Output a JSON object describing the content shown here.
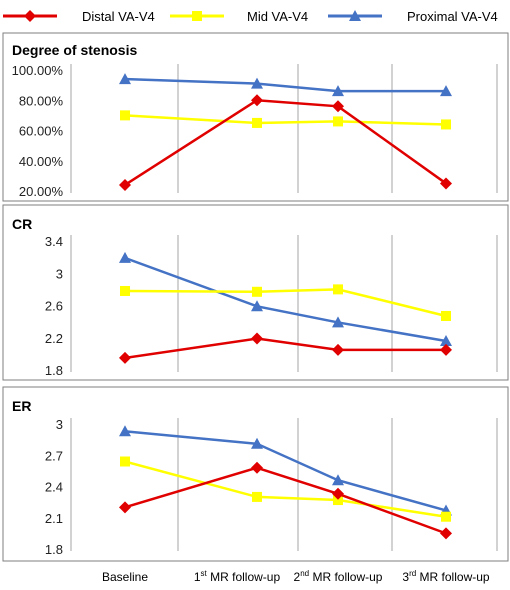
{
  "legend": {
    "placement": "top",
    "entries": [
      {
        "name": "Distal VA-V4",
        "color": "#e00000",
        "marker": "diamond"
      },
      {
        "name": "Mid VA-V4",
        "color": "#ffff00",
        "marker": "square"
      },
      {
        "name": "Proximal VA-V4",
        "color": "#4472c4",
        "marker": "triangle"
      }
    ]
  },
  "x_categories": [
    {
      "pre": "Baseline",
      "sup": "",
      "post": ""
    },
    {
      "pre": "1",
      "sup": "st",
      "post": " MR follow-up"
    },
    {
      "pre": "2",
      "sup": "nd",
      "post": " MR follow-up"
    },
    {
      "pre": "3",
      "sup": "rd",
      "post": " MR follow-up"
    }
  ],
  "chart_data": [
    {
      "type": "line",
      "title": "Degree of stenosis",
      "ylim": [
        20,
        100
      ],
      "yticks": [
        "100.00%",
        "80.00%",
        "60.00%",
        "40.00%",
        "20.00%"
      ],
      "ytick_values": [
        100,
        80,
        60,
        40,
        20
      ],
      "grid": "vertical",
      "series": [
        {
          "name": "Distal VA-V4",
          "values": [
            24,
            80,
            76,
            25
          ]
        },
        {
          "name": "Mid VA-V4",
          "values": [
            70,
            65,
            66,
            64
          ]
        },
        {
          "name": "Proximal VA-V4",
          "values": [
            94,
            91,
            86,
            86
          ]
        }
      ]
    },
    {
      "type": "line",
      "title": "CR",
      "ylim": [
        1.8,
        3.4
      ],
      "yticks": [
        "3.4",
        "3",
        "2.6",
        "2.2",
        "1.8"
      ],
      "ytick_values": [
        3.4,
        3.0,
        2.6,
        2.2,
        1.8
      ],
      "grid": "vertical",
      "series": [
        {
          "name": "Distal VA-V4",
          "values": [
            1.95,
            2.19,
            2.05,
            2.05
          ]
        },
        {
          "name": "Mid VA-V4",
          "values": [
            2.78,
            2.77,
            2.8,
            2.47
          ]
        },
        {
          "name": "Proximal VA-V4",
          "values": [
            3.19,
            2.59,
            2.39,
            2.16
          ]
        }
      ]
    },
    {
      "type": "line",
      "title": "ER",
      "ylim": [
        1.8,
        3.0
      ],
      "yticks": [
        "3",
        "2.7",
        "2.4",
        "2.1",
        "1.8"
      ],
      "ytick_values": [
        3.0,
        2.7,
        2.4,
        2.1,
        1.8
      ],
      "grid": "vertical",
      "series": [
        {
          "name": "Distal VA-V4",
          "values": [
            2.2,
            2.58,
            2.33,
            1.95
          ]
        },
        {
          "name": "Mid VA-V4",
          "values": [
            2.64,
            2.3,
            2.27,
            2.11
          ]
        },
        {
          "name": "Proximal VA-V4",
          "values": [
            2.93,
            2.81,
            2.46,
            2.17
          ]
        }
      ]
    }
  ]
}
